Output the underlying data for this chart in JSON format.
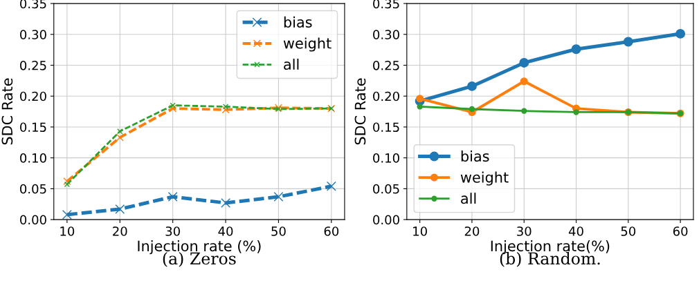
{
  "chart_data": [
    {
      "type": "line",
      "xlabel": "Injection rate (%)",
      "ylabel": "SDC Rate",
      "annotations": [
        "(a) Zeros"
      ],
      "x": [
        10,
        20,
        30,
        40,
        50,
        60
      ],
      "xlim": [
        7.5,
        62.5
      ],
      "xticks": [
        10,
        20,
        30,
        40,
        50,
        60
      ],
      "ylim": [
        0,
        0.35
      ],
      "yticks": [
        {
          "value": 0,
          "label": "0.00"
        },
        {
          "value": 0.05,
          "label": "0.05"
        },
        {
          "value": 0.1,
          "label": "0.10"
        },
        {
          "value": 0.15,
          "label": "0.15"
        },
        {
          "value": 0.2,
          "label": "0.20"
        },
        {
          "value": 0.25,
          "label": "0.25"
        },
        {
          "value": 0.3,
          "label": "0.30"
        },
        {
          "value": 0.35,
          "label": "0.35"
        }
      ],
      "grid": true,
      "legend": "top right",
      "marker": "cross",
      "line_style": "dashed",
      "series": [
        {
          "name": "bias",
          "color": "#1f77b4",
          "values": [
            0.008,
            0.017,
            0.037,
            0.027,
            0.037,
            0.054
          ]
        },
        {
          "name": "weight",
          "color": "#ff7f0e",
          "values": [
            0.062,
            0.133,
            0.18,
            0.178,
            0.181,
            0.18
          ]
        },
        {
          "name": "all",
          "color": "#2ca02c",
          "values": [
            0.057,
            0.143,
            0.185,
            0.183,
            0.179,
            0.18
          ]
        }
      ]
    },
    {
      "type": "line",
      "xlabel": "Injection rate(%)",
      "ylabel": "SDC Rate",
      "annotations": [
        "(b) Random."
      ],
      "x": [
        10,
        20,
        30,
        40,
        50,
        60
      ],
      "xlim": [
        7.5,
        62.5
      ],
      "xticks": [
        10,
        20,
        30,
        40,
        50,
        60
      ],
      "ylim": [
        0,
        0.35
      ],
      "yticks": [
        {
          "value": 0,
          "label": "0.00"
        },
        {
          "value": 0.05,
          "label": "0.05"
        },
        {
          "value": 0.1,
          "label": "0.10"
        },
        {
          "value": 0.15,
          "label": "0.15"
        },
        {
          "value": 0.2,
          "label": "0.20"
        },
        {
          "value": 0.25,
          "label": "0.25"
        },
        {
          "value": 0.3,
          "label": "0.30"
        },
        {
          "value": 0.35,
          "label": "0.35"
        }
      ],
      "grid": true,
      "legend": "bottom left",
      "marker": "circle",
      "line_style": "solid",
      "series": [
        {
          "name": "bias",
          "color": "#1f77b4",
          "values": [
            0.192,
            0.216,
            0.254,
            0.276,
            0.288,
            0.301
          ]
        },
        {
          "name": "weight",
          "color": "#ff7f0e",
          "values": [
            0.196,
            0.174,
            0.224,
            0.18,
            0.174,
            0.172
          ]
        },
        {
          "name": "all",
          "color": "#2ca02c",
          "values": [
            0.183,
            0.179,
            0.176,
            0.174,
            0.174,
            0.172
          ]
        }
      ]
    }
  ]
}
